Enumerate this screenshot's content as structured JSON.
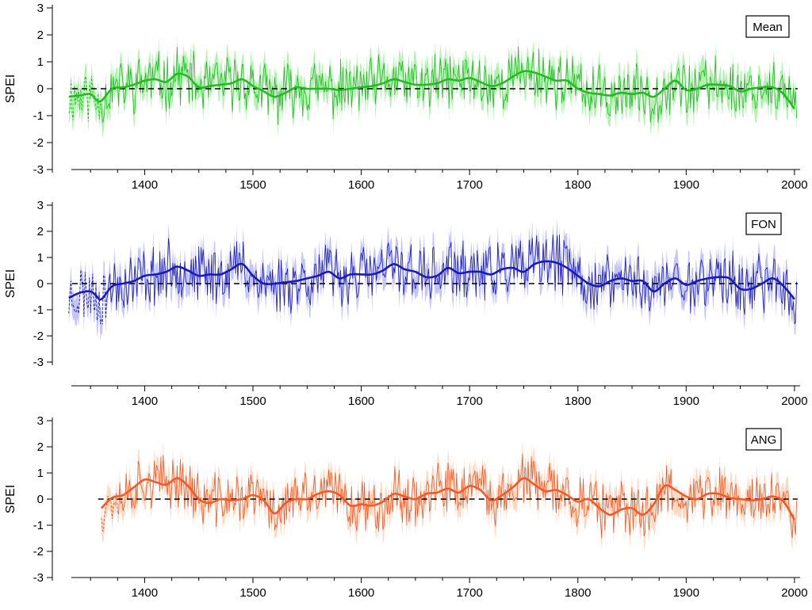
{
  "chart_data": [
    {
      "type": "line",
      "ylabel": "SPEI",
      "label_box": "Mean",
      "color": "#22bb22",
      "band_color": "#9ff09f",
      "xlim": [
        1325,
        2003
      ],
      "ylim": [
        -3,
        3
      ],
      "x_ticks": [
        1400,
        1500,
        1600,
        1700,
        1800,
        1900,
        2000
      ],
      "y_ticks": [
        -3,
        -2,
        -1,
        0,
        1,
        2,
        3
      ],
      "reference_line": 0,
      "smoothed": {
        "x": [
          1330,
          1340,
          1350,
          1355,
          1360,
          1370,
          1380,
          1390,
          1400,
          1410,
          1420,
          1430,
          1440,
          1450,
          1460,
          1470,
          1480,
          1490,
          1500,
          1510,
          1520,
          1530,
          1540,
          1550,
          1560,
          1570,
          1580,
          1590,
          1600,
          1610,
          1620,
          1630,
          1640,
          1650,
          1660,
          1670,
          1680,
          1690,
          1700,
          1710,
          1720,
          1730,
          1740,
          1750,
          1760,
          1770,
          1780,
          1790,
          1800,
          1810,
          1820,
          1830,
          1840,
          1850,
          1860,
          1870,
          1880,
          1890,
          1900,
          1910,
          1920,
          1930,
          1940,
          1950,
          1960,
          1970,
          1980,
          1990,
          2000
        ],
        "y": [
          -0.3,
          -0.25,
          -0.2,
          -0.4,
          -0.45,
          0.0,
          0.05,
          0.15,
          0.3,
          0.35,
          0.25,
          0.55,
          0.45,
          0.05,
          0.1,
          0.15,
          0.2,
          0.35,
          0.1,
          -0.1,
          -0.3,
          -0.15,
          0.05,
          0.0,
          0.0,
          0.0,
          -0.05,
          0.0,
          0.05,
          0.1,
          0.2,
          0.35,
          0.25,
          0.15,
          0.15,
          0.2,
          0.35,
          0.3,
          0.4,
          0.25,
          0.1,
          0.2,
          0.45,
          0.65,
          0.6,
          0.45,
          0.3,
          0.3,
          0.0,
          -0.15,
          -0.2,
          -0.25,
          -0.15,
          -0.2,
          -0.15,
          -0.3,
          0.0,
          0.3,
          -0.05,
          0.0,
          0.15,
          0.15,
          0.1,
          -0.1,
          0.0,
          0.05,
          0.05,
          -0.2,
          -0.75
        ]
      },
      "annual": {
        "start": 1330,
        "end": 2002,
        "seed": 11,
        "amplitude": 0.9,
        "band": 0.45,
        "dashed_before": 1360
      }
    },
    {
      "type": "line",
      "ylabel": "SPEI",
      "label_box": "FON",
      "color": "#1a1ab8",
      "band_color": "#b8bcf4",
      "xlim": [
        1325,
        2003
      ],
      "ylim": [
        -3,
        3
      ],
      "x_ticks": [
        1400,
        1500,
        1600,
        1700,
        1800,
        1900,
        2000
      ],
      "y_ticks": [
        -3,
        -2,
        -1,
        0,
        1,
        2,
        3
      ],
      "reference_line": 0,
      "smoothed": {
        "x": [
          1330,
          1340,
          1350,
          1355,
          1360,
          1370,
          1380,
          1390,
          1400,
          1410,
          1420,
          1430,
          1440,
          1450,
          1460,
          1470,
          1480,
          1490,
          1500,
          1510,
          1520,
          1530,
          1540,
          1550,
          1560,
          1570,
          1580,
          1590,
          1600,
          1610,
          1620,
          1630,
          1640,
          1650,
          1660,
          1670,
          1680,
          1690,
          1700,
          1710,
          1720,
          1730,
          1740,
          1750,
          1760,
          1770,
          1780,
          1790,
          1800,
          1810,
          1820,
          1830,
          1840,
          1850,
          1860,
          1870,
          1880,
          1890,
          1900,
          1910,
          1920,
          1930,
          1940,
          1950,
          1960,
          1970,
          1980,
          1990,
          2000
        ],
        "y": [
          -0.55,
          -0.35,
          -0.3,
          -0.45,
          -0.6,
          -0.1,
          0.0,
          0.1,
          0.3,
          0.35,
          0.45,
          0.65,
          0.5,
          0.3,
          0.35,
          0.35,
          0.55,
          0.75,
          0.3,
          0.0,
          0.0,
          0.05,
          0.1,
          0.2,
          0.3,
          0.45,
          0.2,
          0.35,
          0.35,
          0.35,
          0.5,
          0.75,
          0.55,
          0.45,
          0.25,
          0.3,
          0.6,
          0.4,
          0.45,
          0.45,
          0.35,
          0.55,
          0.6,
          0.45,
          0.75,
          0.85,
          0.8,
          0.6,
          0.3,
          0.0,
          -0.1,
          0.1,
          0.2,
          0.1,
          0.1,
          -0.3,
          0.0,
          0.2,
          -0.05,
          0.1,
          0.2,
          0.25,
          0.2,
          -0.2,
          -0.2,
          0.0,
          0.2,
          -0.1,
          -0.6
        ]
      },
      "annual": {
        "start": 1330,
        "end": 2002,
        "seed": 23,
        "amplitude": 1.0,
        "band": 0.5,
        "dashed_before": 1365
      }
    },
    {
      "type": "line",
      "ylabel": "SPEI",
      "label_box": "ANG",
      "color": "#f05a28",
      "band_color": "#fbd2b8",
      "xlim": [
        1325,
        2003
      ],
      "ylim": [
        -3,
        3
      ],
      "x_ticks": [
        1400,
        1500,
        1600,
        1700,
        1800,
        1900,
        2000
      ],
      "y_ticks": [
        -3,
        -2,
        -1,
        0,
        1,
        2,
        3
      ],
      "reference_line": 0,
      "smoothed": {
        "x": [
          1360,
          1370,
          1380,
          1390,
          1400,
          1410,
          1420,
          1430,
          1440,
          1450,
          1460,
          1470,
          1480,
          1490,
          1500,
          1510,
          1520,
          1530,
          1540,
          1550,
          1560,
          1570,
          1580,
          1590,
          1600,
          1610,
          1620,
          1630,
          1640,
          1650,
          1660,
          1670,
          1680,
          1690,
          1700,
          1710,
          1720,
          1730,
          1740,
          1750,
          1760,
          1770,
          1780,
          1790,
          1800,
          1810,
          1820,
          1830,
          1840,
          1850,
          1860,
          1870,
          1880,
          1890,
          1900,
          1910,
          1920,
          1930,
          1940,
          1950,
          1960,
          1970,
          1980,
          1990,
          2000
        ],
        "y": [
          -0.35,
          0.05,
          0.15,
          0.45,
          0.75,
          0.65,
          0.55,
          0.8,
          0.5,
          0.0,
          -0.15,
          0.0,
          -0.05,
          0.0,
          0.15,
          -0.05,
          -0.55,
          -0.15,
          0.0,
          0.0,
          0.2,
          0.3,
          0.15,
          -0.25,
          -0.2,
          -0.25,
          -0.1,
          0.2,
          0.1,
          0.0,
          0.2,
          0.25,
          0.4,
          0.25,
          0.5,
          0.35,
          -0.05,
          0.15,
          0.45,
          0.8,
          0.55,
          0.3,
          0.35,
          0.15,
          -0.1,
          0.0,
          -0.35,
          -0.6,
          -0.4,
          -0.35,
          -0.6,
          -0.2,
          0.5,
          0.35,
          0.1,
          0.0,
          0.2,
          0.2,
          0.05,
          0.0,
          -0.05,
          0.0,
          0.1,
          -0.1,
          -0.8
        ]
      },
      "annual": {
        "start": 1360,
        "end": 2002,
        "seed": 37,
        "amplitude": 0.9,
        "band": 0.45,
        "dashed_before": 1375
      }
    }
  ]
}
